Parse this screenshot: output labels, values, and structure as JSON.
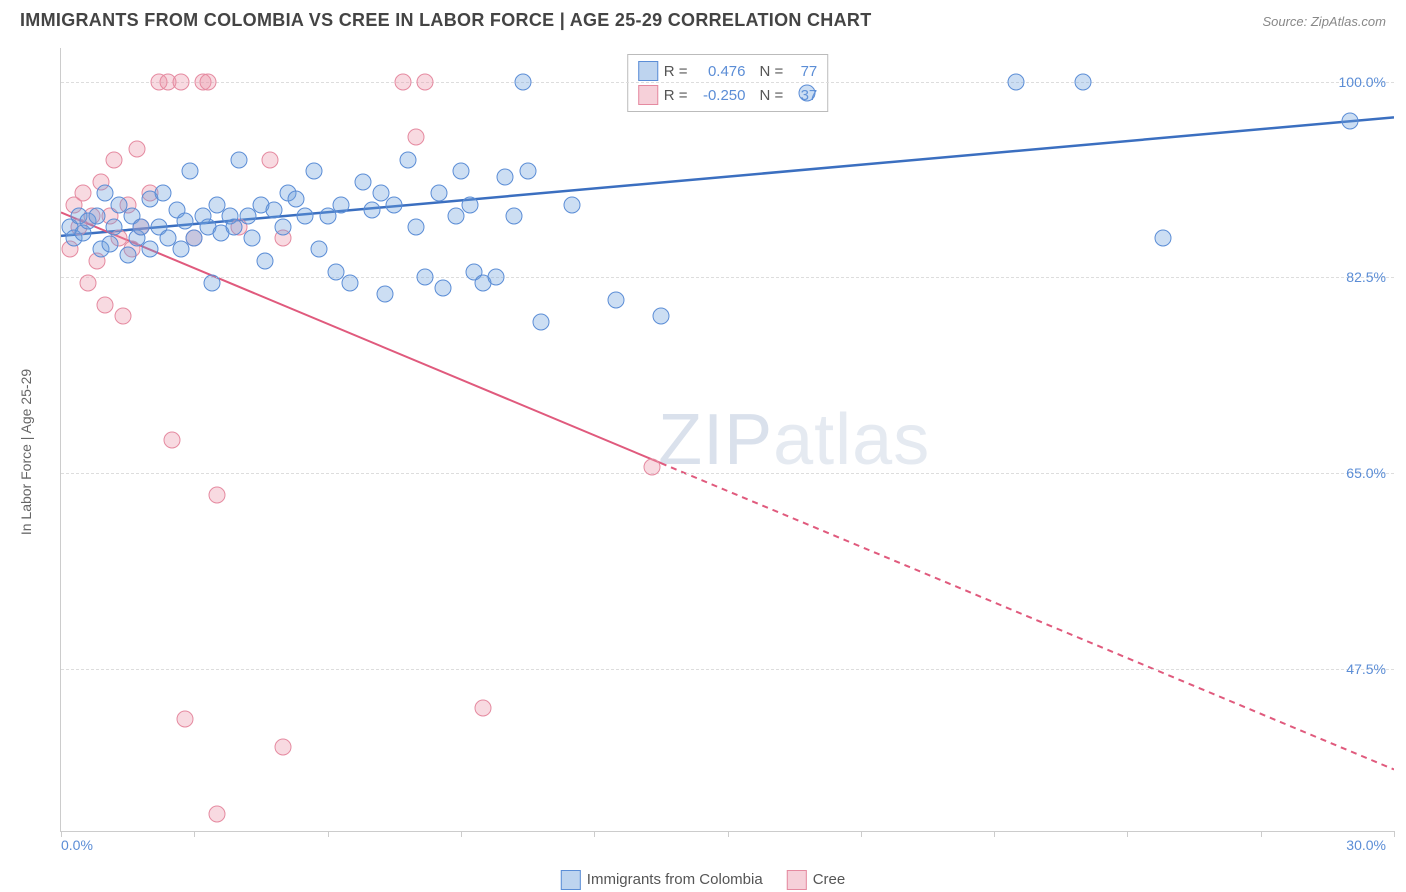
{
  "header": {
    "title": "IMMIGRANTS FROM COLOMBIA VS CREE IN LABOR FORCE | AGE 25-29 CORRELATION CHART",
    "source_label": "Source: ",
    "source_name": "ZipAtlas.com"
  },
  "ylabel": "In Labor Force | Age 25-29",
  "watermark": {
    "a": "ZIP",
    "b": "atlas"
  },
  "chart": {
    "type": "scatter",
    "xlim": [
      0,
      30
    ],
    "ylim": [
      33,
      103
    ],
    "background_color": "#ffffff",
    "grid_color": "#dddddd",
    "axis_color": "#cccccc",
    "point_radius": 15,
    "x_ticks": [
      0,
      3,
      6,
      9,
      12,
      15,
      18,
      21,
      24,
      27,
      30
    ],
    "x_axis_labels": {
      "min": "0.0%",
      "max": "30.0%"
    },
    "y_axis_labels": [
      {
        "value": 100.0,
        "text": "100.0%"
      },
      {
        "value": 82.5,
        "text": "82.5%"
      },
      {
        "value": 65.0,
        "text": "65.0%"
      },
      {
        "value": 47.5,
        "text": "47.5%"
      }
    ],
    "y_gridlines": [
      100.0,
      82.5,
      65.0,
      47.5
    ],
    "tick_label_color": "#5b8dd6",
    "tick_label_fontsize": 14
  },
  "legend_top": {
    "rows": [
      {
        "series": "a",
        "r_label": "R =",
        "r": "0.476",
        "n_label": "N =",
        "n": "77"
      },
      {
        "series": "b",
        "r_label": "R =",
        "r": "-0.250",
        "n_label": "N =",
        "n": "37"
      }
    ],
    "key_color": "#555555",
    "value_color": "#5b8dd6"
  },
  "legend_bottom": {
    "items": [
      {
        "series": "a",
        "label": "Immigrants from Colombia"
      },
      {
        "series": "b",
        "label": "Cree"
      }
    ]
  },
  "series": {
    "a": {
      "label": "Immigrants from Colombia",
      "color_fill": "rgba(110,160,220,0.35)",
      "color_stroke": "#5b8dd6",
      "trend": {
        "color": "#3b6fc0",
        "width": 2.5,
        "solid_from_x": 0,
        "solid_to_x": 30,
        "y_at_x0": 86.2,
        "y_at_x30": 96.8
      },
      "points": [
        {
          "x": 0.2,
          "y": 87.0
        },
        {
          "x": 0.3,
          "y": 86.0
        },
        {
          "x": 0.4,
          "y": 88.0
        },
        {
          "x": 0.5,
          "y": 86.5
        },
        {
          "x": 0.6,
          "y": 87.5
        },
        {
          "x": 0.8,
          "y": 88.0
        },
        {
          "x": 0.9,
          "y": 85.0
        },
        {
          "x": 1.0,
          "y": 90.0
        },
        {
          "x": 1.1,
          "y": 85.5
        },
        {
          "x": 1.2,
          "y": 87.0
        },
        {
          "x": 1.3,
          "y": 89.0
        },
        {
          "x": 1.5,
          "y": 84.5
        },
        {
          "x": 1.6,
          "y": 88.0
        },
        {
          "x": 1.7,
          "y": 86.0
        },
        {
          "x": 1.8,
          "y": 87.0
        },
        {
          "x": 2.0,
          "y": 89.5
        },
        {
          "x": 2.0,
          "y": 85.0
        },
        {
          "x": 2.2,
          "y": 87.0
        },
        {
          "x": 2.3,
          "y": 90.0
        },
        {
          "x": 2.4,
          "y": 86.0
        },
        {
          "x": 2.6,
          "y": 88.5
        },
        {
          "x": 2.7,
          "y": 85.0
        },
        {
          "x": 2.8,
          "y": 87.5
        },
        {
          "x": 2.9,
          "y": 92.0
        },
        {
          "x": 3.0,
          "y": 86.0
        },
        {
          "x": 3.2,
          "y": 88.0
        },
        {
          "x": 3.3,
          "y": 87.0
        },
        {
          "x": 3.4,
          "y": 82.0
        },
        {
          "x": 3.5,
          "y": 89.0
        },
        {
          "x": 3.6,
          "y": 86.5
        },
        {
          "x": 3.8,
          "y": 88.0
        },
        {
          "x": 3.9,
          "y": 87.0
        },
        {
          "x": 4.0,
          "y": 93.0
        },
        {
          "x": 4.2,
          "y": 88.0
        },
        {
          "x": 4.3,
          "y": 86.0
        },
        {
          "x": 4.5,
          "y": 89.0
        },
        {
          "x": 4.6,
          "y": 84.0
        },
        {
          "x": 4.8,
          "y": 88.5
        },
        {
          "x": 5.0,
          "y": 87.0
        },
        {
          "x": 5.1,
          "y": 90.0
        },
        {
          "x": 5.3,
          "y": 89.5
        },
        {
          "x": 5.5,
          "y": 88.0
        },
        {
          "x": 5.7,
          "y": 92.0
        },
        {
          "x": 5.8,
          "y": 85.0
        },
        {
          "x": 6.0,
          "y": 88.0
        },
        {
          "x": 6.2,
          "y": 83.0
        },
        {
          "x": 6.3,
          "y": 89.0
        },
        {
          "x": 6.5,
          "y": 82.0
        },
        {
          "x": 6.8,
          "y": 91.0
        },
        {
          "x": 7.0,
          "y": 88.5
        },
        {
          "x": 7.2,
          "y": 90.0
        },
        {
          "x": 7.3,
          "y": 81.0
        },
        {
          "x": 7.5,
          "y": 89.0
        },
        {
          "x": 7.8,
          "y": 93.0
        },
        {
          "x": 8.0,
          "y": 87.0
        },
        {
          "x": 8.2,
          "y": 82.5
        },
        {
          "x": 8.5,
          "y": 90.0
        },
        {
          "x": 8.6,
          "y": 81.5
        },
        {
          "x": 8.9,
          "y": 88.0
        },
        {
          "x": 9.0,
          "y": 92.0
        },
        {
          "x": 9.2,
          "y": 89.0
        },
        {
          "x": 9.3,
          "y": 83.0
        },
        {
          "x": 9.5,
          "y": 82.0
        },
        {
          "x": 10.0,
          "y": 91.5
        },
        {
          "x": 10.2,
          "y": 88.0
        },
        {
          "x": 10.4,
          "y": 100.0
        },
        {
          "x": 10.5,
          "y": 92.0
        },
        {
          "x": 10.8,
          "y": 78.5
        },
        {
          "x": 11.5,
          "y": 89.0
        },
        {
          "x": 12.5,
          "y": 80.5
        },
        {
          "x": 13.5,
          "y": 79.0
        },
        {
          "x": 16.8,
          "y": 99.0
        },
        {
          "x": 21.5,
          "y": 100.0
        },
        {
          "x": 23.0,
          "y": 100.0
        },
        {
          "x": 24.8,
          "y": 86.0
        },
        {
          "x": 29.0,
          "y": 96.5
        },
        {
          "x": 9.8,
          "y": 82.5
        }
      ]
    },
    "b": {
      "label": "Cree",
      "color_fill": "rgba(235,150,170,0.35)",
      "color_stroke": "#e58aa0",
      "trend": {
        "color": "#e05a7d",
        "width": 2,
        "solid_from_x": 0,
        "solid_to_x": 13.5,
        "dashed_to_x": 30,
        "y_at_x0": 88.3,
        "y_at_x30": 38.5
      },
      "points": [
        {
          "x": 0.2,
          "y": 85.0
        },
        {
          "x": 0.3,
          "y": 89.0
        },
        {
          "x": 0.4,
          "y": 87.0
        },
        {
          "x": 0.5,
          "y": 90.0
        },
        {
          "x": 0.6,
          "y": 82.0
        },
        {
          "x": 0.7,
          "y": 88.0
        },
        {
          "x": 0.8,
          "y": 84.0
        },
        {
          "x": 0.9,
          "y": 91.0
        },
        {
          "x": 1.0,
          "y": 80.0
        },
        {
          "x": 1.1,
          "y": 88.0
        },
        {
          "x": 1.2,
          "y": 93.0
        },
        {
          "x": 1.3,
          "y": 86.0
        },
        {
          "x": 1.4,
          "y": 79.0
        },
        {
          "x": 1.5,
          "y": 89.0
        },
        {
          "x": 1.6,
          "y": 85.0
        },
        {
          "x": 1.7,
          "y": 94.0
        },
        {
          "x": 1.8,
          "y": 87.0
        },
        {
          "x": 2.0,
          "y": 90.0
        },
        {
          "x": 2.2,
          "y": 100.0
        },
        {
          "x": 2.4,
          "y": 100.0
        },
        {
          "x": 2.5,
          "y": 68.0
        },
        {
          "x": 2.7,
          "y": 100.0
        },
        {
          "x": 3.0,
          "y": 86.0
        },
        {
          "x": 3.2,
          "y": 100.0
        },
        {
          "x": 3.3,
          "y": 100.0
        },
        {
          "x": 3.5,
          "y": 63.0
        },
        {
          "x": 4.0,
          "y": 87.0
        },
        {
          "x": 4.7,
          "y": 93.0
        },
        {
          "x": 5.0,
          "y": 86.0
        },
        {
          "x": 7.7,
          "y": 100.0
        },
        {
          "x": 8.0,
          "y": 95.0
        },
        {
          "x": 8.2,
          "y": 100.0
        },
        {
          "x": 2.8,
          "y": 43.0
        },
        {
          "x": 3.5,
          "y": 34.5
        },
        {
          "x": 5.0,
          "y": 40.5
        },
        {
          "x": 9.5,
          "y": 44.0
        },
        {
          "x": 13.3,
          "y": 65.5
        }
      ]
    }
  }
}
